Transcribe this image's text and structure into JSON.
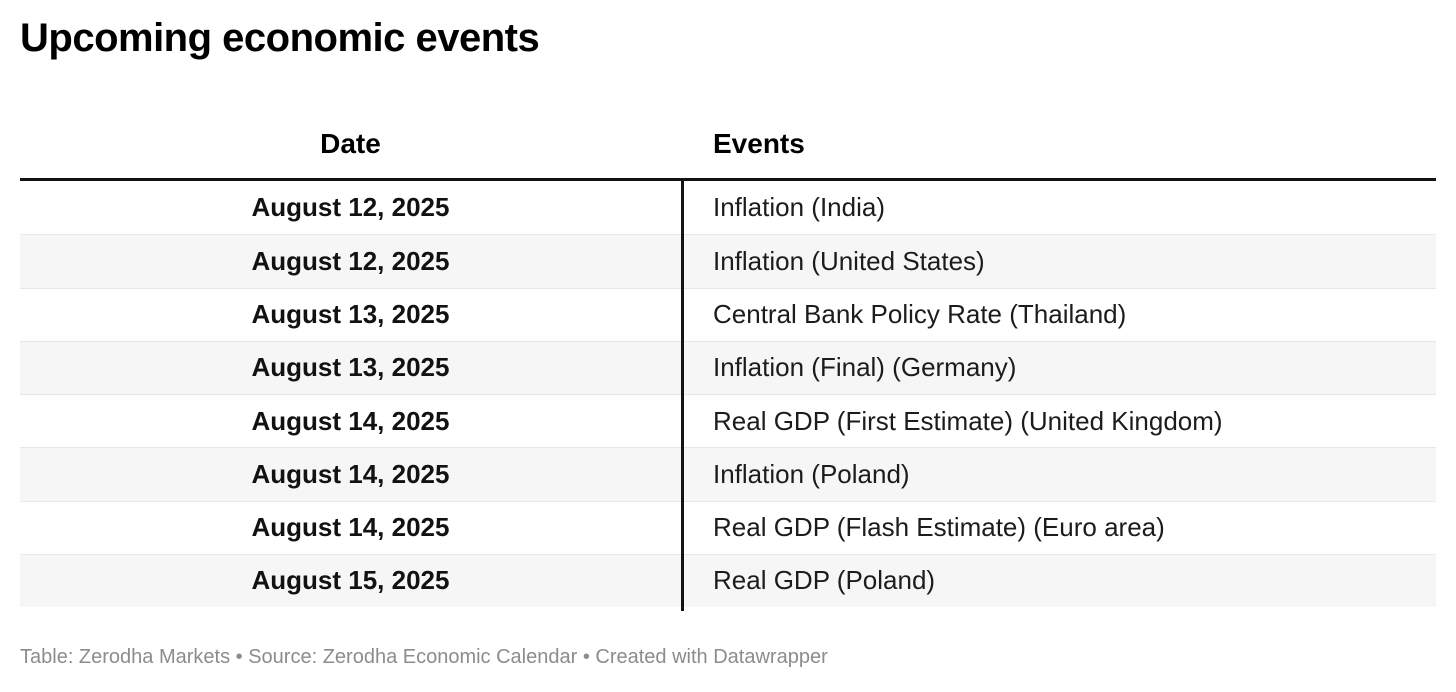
{
  "chart_data": {
    "type": "table",
    "title": "Upcoming economic events",
    "columns": [
      "Date",
      "Events"
    ],
    "rows": [
      [
        "August 12, 2025",
        "Inflation (India)"
      ],
      [
        "August 12, 2025",
        "Inflation (United States)"
      ],
      [
        "August 13, 2025",
        "Central Bank Policy Rate (Thailand)"
      ],
      [
        "August 13, 2025",
        "Inflation (Final) (Germany)"
      ],
      [
        "August 14, 2025",
        "Real GDP (First Estimate) (United Kingdom)"
      ],
      [
        "August 14, 2025",
        "Inflation (Poland)"
      ],
      [
        "August 14, 2025",
        "Real GDP (Flash Estimate) (Euro area)"
      ],
      [
        "August 15, 2025",
        "Real GDP (Poland)"
      ]
    ],
    "footnote": "Table: Zerodha Markets • Source: Zerodha Economic Calendar • Created with Datawrapper",
    "layout_hints": {
      "alternating_rows": true,
      "date_column_align": "center",
      "events_column_align": "left",
      "grid": "horizontal separators, single vertical divider between columns"
    }
  },
  "colors": {
    "background": "#ffffff",
    "title_text": "#000000",
    "body_text": "#1c1c1c",
    "date_text": "#121212",
    "alt_row_background": "#f6f6f6",
    "row_separator": "#e7e7e7",
    "header_rule": "#131313",
    "column_divider": "#131313",
    "footnote_text": "#8c8c8c"
  }
}
